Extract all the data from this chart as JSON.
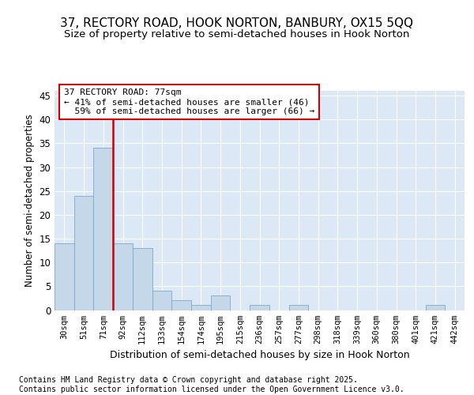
{
  "title_line1": "37, RECTORY ROAD, HOOK NORTON, BANBURY, OX15 5QQ",
  "title_line2": "Size of property relative to semi-detached houses in Hook Norton",
  "xlabel": "Distribution of semi-detached houses by size in Hook Norton",
  "ylabel": "Number of semi-detached properties",
  "bins": [
    "30sqm",
    "51sqm",
    "71sqm",
    "92sqm",
    "112sqm",
    "133sqm",
    "154sqm",
    "174sqm",
    "195sqm",
    "215sqm",
    "236sqm",
    "257sqm",
    "277sqm",
    "298sqm",
    "318sqm",
    "339sqm",
    "360sqm",
    "380sqm",
    "401sqm",
    "421sqm",
    "442sqm"
  ],
  "values": [
    14,
    24,
    34,
    14,
    13,
    4,
    2,
    1,
    3,
    0,
    1,
    0,
    1,
    0,
    0,
    0,
    0,
    0,
    0,
    1,
    0
  ],
  "bar_color": "#c5d8ea",
  "bar_edge_color": "#7aaac8",
  "vline_x_index": 2,
  "vline_color": "#cc0000",
  "annotation_text": "37 RECTORY ROAD: 77sqm\n← 41% of semi-detached houses are smaller (46)\n  59% of semi-detached houses are larger (66) →",
  "annotation_box_color": "#cc0000",
  "ylim": [
    0,
    46
  ],
  "yticks": [
    0,
    5,
    10,
    15,
    20,
    25,
    30,
    35,
    40,
    45
  ],
  "bg_color": "#dce8f5",
  "footer": "Contains HM Land Registry data © Crown copyright and database right 2025.\nContains public sector information licensed under the Open Government Licence v3.0.",
  "title_fontsize": 11,
  "subtitle_fontsize": 9.5,
  "footer_fontsize": 7
}
